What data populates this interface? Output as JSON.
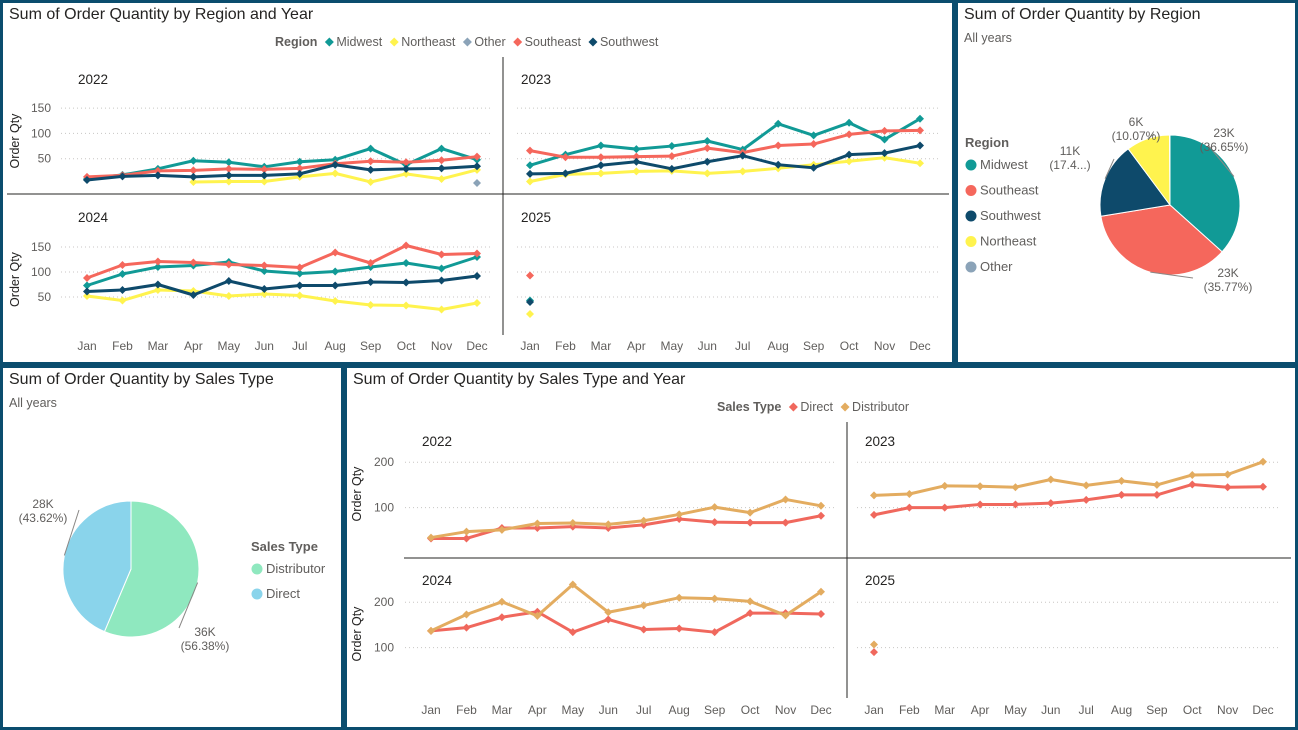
{
  "panels": {
    "region_year": {
      "title": "Sum of Order Quantity by Region and Year"
    },
    "region_pie": {
      "title": "Sum of Order Quantity by Region",
      "subtitle": "All years"
    },
    "sales_pie": {
      "title": "Sum of Order Quantity by Sales Type",
      "subtitle": "All years"
    },
    "sales_year": {
      "title": "Sum of Order Quantity by Sales Type and Year"
    }
  },
  "colors": {
    "Midwest": "#119A96",
    "Northeast": "#FFF34E",
    "Other": "#8BA3B8",
    "Southeast": "#F5675C",
    "Southwest": "#0E4A6B",
    "Direct": "#F0685D",
    "Distributor": "#E3AC60",
    "DirectPie": "#8AD4EB",
    "DistributorPie": "#8FE8BF"
  },
  "chart_data": [
    {
      "type": "line",
      "id": "region_year",
      "legend_title": "Region",
      "legend_position": "top-center",
      "ylabel": "Order Qty",
      "months": [
        "Jan",
        "Feb",
        "Mar",
        "Apr",
        "May",
        "Jun",
        "Jul",
        "Aug",
        "Sep",
        "Oct",
        "Nov",
        "Dec"
      ],
      "yticks": [
        50,
        100,
        150
      ],
      "ylim": [
        0,
        170
      ],
      "legend": [
        "Midwest",
        "Northeast",
        "Other",
        "Southeast",
        "Southwest"
      ],
      "facets": [
        {
          "year": "2022",
          "series": [
            {
              "name": "Midwest",
              "values": [
                10,
                18,
                30,
                46,
                43,
                34,
                44,
                48,
                70,
                38,
                70,
                48
              ]
            },
            {
              "name": "Northeast",
              "values": [
                null,
                null,
                null,
                4,
                5,
                5,
                14,
                21,
                4,
                20,
                10,
                28
              ]
            },
            {
              "name": "Other",
              "values": [
                null,
                null,
                null,
                null,
                null,
                null,
                null,
                null,
                null,
                null,
                null,
                2
              ]
            },
            {
              "name": "Southeast",
              "values": [
                14,
                17,
                26,
                27,
                30,
                29,
                31,
                40,
                45,
                43,
                47,
                54
              ]
            },
            {
              "name": "Southwest",
              "values": [
                8,
                15,
                17,
                14,
                17,
                17,
                20,
                38,
                28,
                30,
                31,
                35
              ]
            }
          ]
        },
        {
          "year": "2023",
          "series": [
            {
              "name": "Midwest",
              "values": [
                37,
                58,
                76,
                69,
                75,
                85,
                68,
                119,
                96,
                121,
                88,
                129
              ]
            },
            {
              "name": "Northeast",
              "values": [
                5,
                19,
                21,
                25,
                26,
                21,
                25,
                31,
                38,
                45,
                52,
                41
              ]
            },
            {
              "name": "Southeast",
              "values": [
                66,
                53,
                53,
                54,
                55,
                71,
                62,
                76,
                79,
                98,
                105,
                106
              ]
            },
            {
              "name": "Southwest",
              "values": [
                20,
                21,
                37,
                44,
                30,
                44,
                56,
                38,
                32,
                58,
                61,
                76
              ]
            }
          ]
        },
        {
          "year": "2024",
          "series": [
            {
              "name": "Midwest",
              "values": [
                73,
                96,
                110,
                113,
                120,
                102,
                97,
                101,
                110,
                118,
                107,
                130
              ]
            },
            {
              "name": "Northeast",
              "values": [
                52,
                43,
                64,
                62,
                52,
                56,
                53,
                42,
                34,
                33,
                25,
                38
              ]
            },
            {
              "name": "Southeast",
              "values": [
                88,
                114,
                121,
                119,
                115,
                113,
                109,
                139,
                118,
                153,
                135,
                137
              ]
            },
            {
              "name": "Southwest",
              "values": [
                61,
                64,
                75,
                54,
                82,
                66,
                73,
                73,
                80,
                79,
                83,
                92
              ]
            }
          ]
        },
        {
          "year": "2025",
          "series": [
            {
              "name": "Midwest",
              "values": [
                43,
                null,
                null,
                null,
                null,
                null,
                null,
                null,
                null,
                null,
                null,
                null
              ]
            },
            {
              "name": "Northeast",
              "values": [
                16,
                null,
                null,
                null,
                null,
                null,
                null,
                null,
                null,
                null,
                null,
                null
              ]
            },
            {
              "name": "Southeast",
              "values": [
                93,
                null,
                null,
                null,
                null,
                null,
                null,
                null,
                null,
                null,
                null,
                null
              ]
            },
            {
              "name": "Southwest",
              "values": [
                40,
                null,
                null,
                null,
                null,
                null,
                null,
                null,
                null,
                null,
                null,
                null
              ]
            }
          ]
        }
      ]
    },
    {
      "type": "pie",
      "id": "region_pie",
      "legend_title": "Region",
      "legend_position": "left",
      "slices": [
        {
          "name": "Midwest",
          "value": 36.65,
          "label": "23K",
          "pct": "(36.65%)"
        },
        {
          "name": "Southeast",
          "value": 35.77,
          "label": "23K",
          "pct": "(35.77%)"
        },
        {
          "name": "Southwest",
          "value": 17.4,
          "label": "11K",
          "pct": "(17.4...)"
        },
        {
          "name": "Northeast",
          "value": 10.07,
          "label": "6K",
          "pct": "(10.07%)"
        },
        {
          "name": "Other",
          "value": 0.11,
          "label": "",
          "pct": ""
        }
      ],
      "legend": [
        "Midwest",
        "Southeast",
        "Southwest",
        "Northeast",
        "Other"
      ]
    },
    {
      "type": "pie",
      "id": "sales_pie",
      "legend_title": "Sales Type",
      "legend_position": "right",
      "slices": [
        {
          "name": "Distributor",
          "value": 56.38,
          "label": "36K",
          "pct": "(56.38%)"
        },
        {
          "name": "Direct",
          "value": 43.62,
          "label": "28K",
          "pct": "(43.62%)"
        }
      ],
      "legend": [
        "Distributor",
        "Direct"
      ]
    },
    {
      "type": "line",
      "id": "sales_year",
      "legend_title": "Sales Type",
      "legend_position": "top-center",
      "ylabel": "Order Qty",
      "months": [
        "Jan",
        "Feb",
        "Mar",
        "Apr",
        "May",
        "Jun",
        "Jul",
        "Aug",
        "Sep",
        "Oct",
        "Nov",
        "Dec"
      ],
      "yticks": [
        100,
        200
      ],
      "ylim": [
        0,
        260
      ],
      "legend": [
        "Direct",
        "Distributor"
      ],
      "facets": [
        {
          "year": "2022",
          "series": [
            {
              "name": "Direct",
              "values": [
                32,
                32,
                55,
                55,
                58,
                55,
                62,
                75,
                68,
                67,
                67,
                82
              ]
            },
            {
              "name": "Distributor",
              "values": [
                34,
                47,
                51,
                65,
                66,
                63,
                71,
                85,
                101,
                89,
                118,
                104
              ]
            }
          ]
        },
        {
          "year": "2023",
          "series": [
            {
              "name": "Direct",
              "values": [
                84,
                100,
                100,
                107,
                107,
                110,
                117,
                128,
                128,
                151,
                145,
                146
              ]
            },
            {
              "name": "Distributor",
              "values": [
                127,
                130,
                148,
                147,
                145,
                162,
                149,
                159,
                150,
                172,
                173,
                201
              ]
            }
          ]
        },
        {
          "year": "2024",
          "series": [
            {
              "name": "Direct",
              "values": [
                137,
                144,
                167,
                179,
                134,
                162,
                140,
                142,
                134,
                176,
                176,
                174
              ]
            },
            {
              "name": "Distributor",
              "values": [
                137,
                173,
                201,
                170,
                239,
                178,
                193,
                210,
                208,
                202,
                171,
                223
              ]
            }
          ]
        },
        {
          "year": "2025",
          "series": [
            {
              "name": "Direct",
              "values": [
                90,
                null,
                null,
                null,
                null,
                null,
                null,
                null,
                null,
                null,
                null,
                null
              ]
            },
            {
              "name": "Distributor",
              "values": [
                107,
                null,
                null,
                null,
                null,
                null,
                null,
                null,
                null,
                null,
                null,
                null
              ]
            }
          ]
        }
      ]
    }
  ]
}
